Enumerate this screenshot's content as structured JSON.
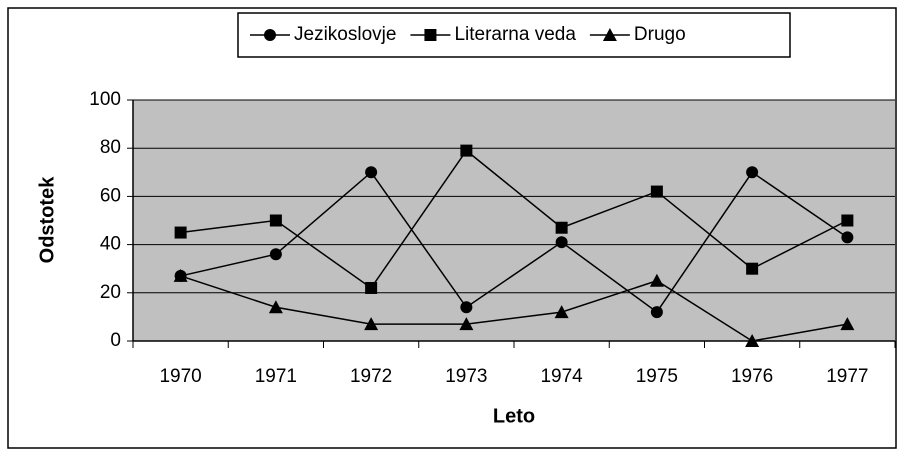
{
  "chart_data": {
    "type": "line",
    "xlabel": "Leto",
    "ylabel": "Odstotek",
    "categories": [
      "1970",
      "1971",
      "1972",
      "1973",
      "1974",
      "1975",
      "1976",
      "1977"
    ],
    "series": [
      {
        "name": "Jezikoslovje",
        "color": "#000000",
        "marker": "circle",
        "values": [
          27,
          36,
          70,
          14,
          41,
          12,
          70,
          43
        ]
      },
      {
        "name": "Literarna veda",
        "color": "#000000",
        "marker": "square",
        "values": [
          45,
          50,
          22,
          79,
          47,
          62,
          30,
          50
        ]
      },
      {
        "name": "Drugo",
        "color": "#000000",
        "marker": "triangle",
        "values": [
          27,
          14,
          7,
          7,
          12,
          25,
          0,
          7
        ]
      }
    ],
    "ylim": [
      0,
      100
    ],
    "yticks": [
      0,
      20,
      40,
      60,
      80,
      100
    ],
    "grid": true,
    "plot_background": "#c0c0c0",
    "legend": "top"
  }
}
